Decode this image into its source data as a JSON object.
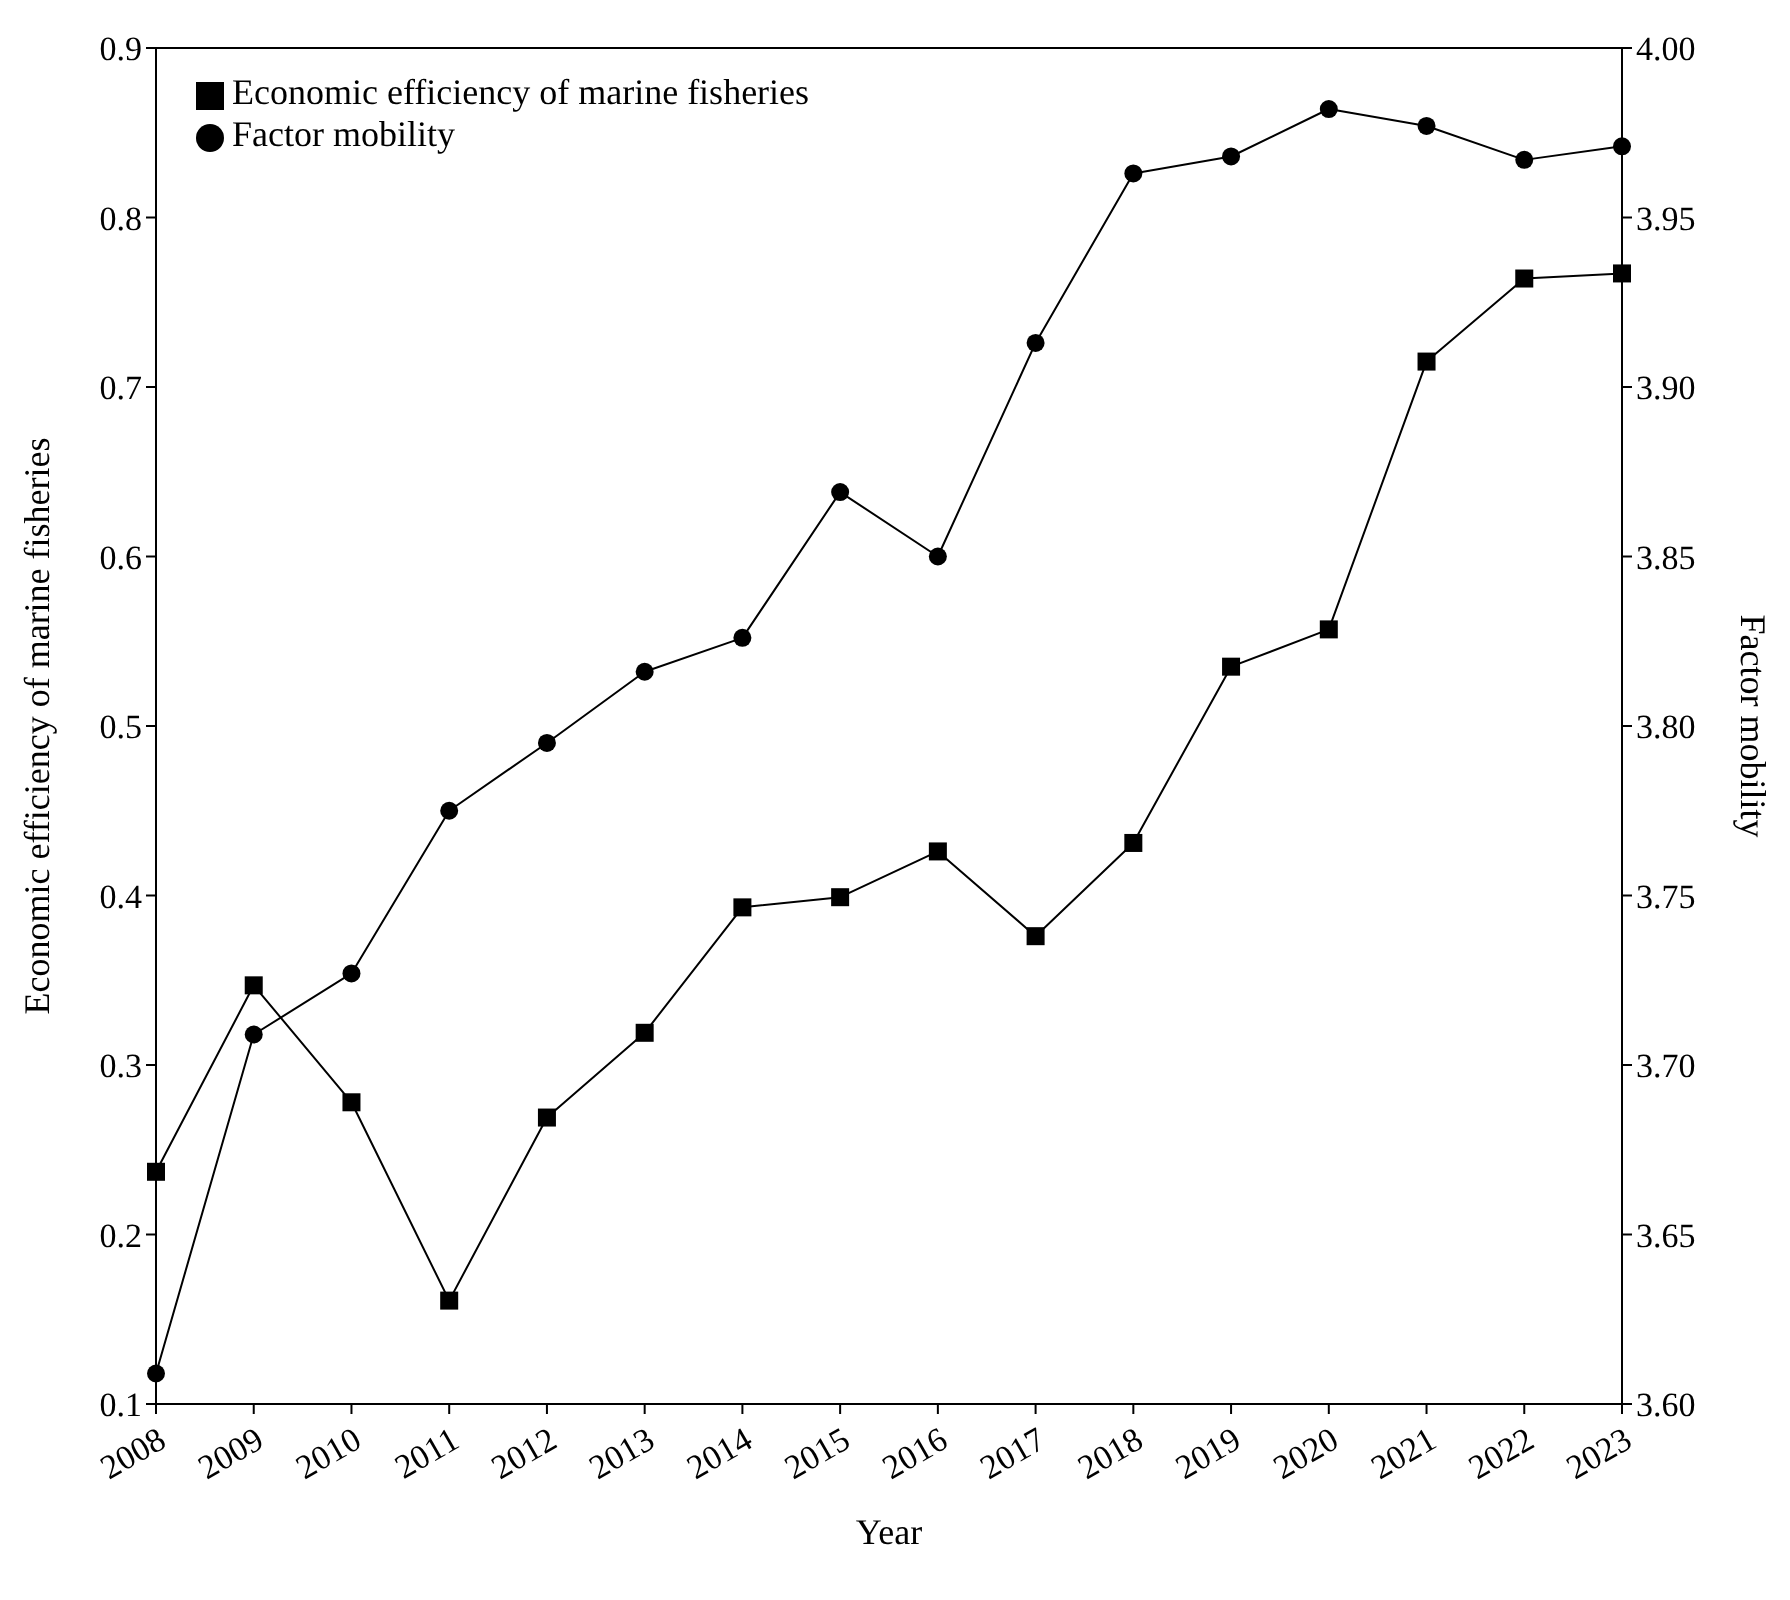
{
  "chart_data": {
    "type": "line",
    "xlabel": "Year",
    "ylabel": "Economic efficiency of marine fisheries",
    "y2label": "Factor mobility",
    "categories": [
      "2008",
      "2009",
      "2010",
      "2011",
      "2012",
      "2013",
      "2014",
      "2015",
      "2016",
      "2017",
      "2018",
      "2019",
      "2020",
      "2021",
      "2022",
      "2023"
    ],
    "series": [
      {
        "name": "Economic efficiency of marine fisheries",
        "color": "#000000",
        "marker": "square",
        "values": [
          0.237,
          0.347,
          0.278,
          0.161,
          0.269,
          0.319,
          0.393,
          0.399,
          0.426,
          0.376,
          0.431,
          0.535,
          0.557,
          0.715,
          0.764,
          0.767
        ]
      },
      {
        "name": "Factor mobility",
        "color": "#000000",
        "marker": "circle",
        "axis": "y2",
        "values": [
          3.609,
          3.709,
          3.727,
          3.775,
          3.795,
          3.816,
          3.826,
          3.869,
          3.85,
          3.913,
          3.963,
          3.968,
          3.982,
          3.977,
          3.967,
          3.971
        ]
      }
    ],
    "ylim": [
      0.1,
      0.9
    ],
    "yticks": [
      0.1,
      0.2,
      0.3,
      0.4,
      0.5,
      0.6,
      0.7,
      0.8,
      0.9
    ],
    "y2lim": [
      3.6,
      4.0
    ],
    "y2ticks": [
      {
        "value": 3.6,
        "label": "3.60"
      },
      3.65,
      {
        "value": 3.7,
        "label": "3.70"
      },
      3.75,
      {
        "value": 3.8,
        "label": "3.80"
      },
      3.85,
      {
        "value": 3.9,
        "label": "3.90"
      },
      3.95,
      {
        "value": 4.0,
        "label": "4.00"
      }
    ],
    "legend": "top left",
    "grid": false
  }
}
